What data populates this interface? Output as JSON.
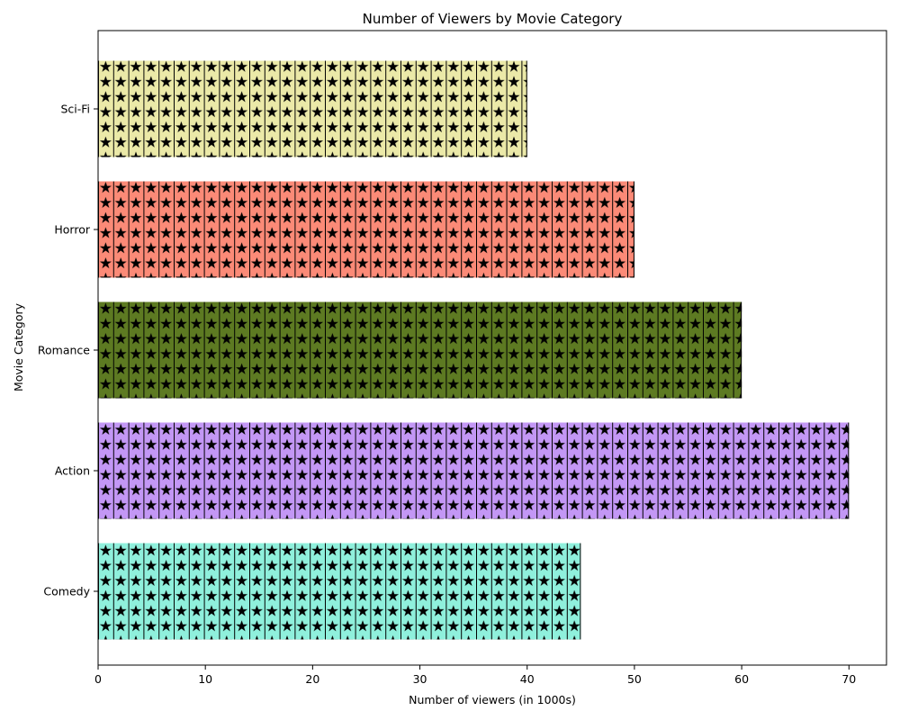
{
  "chart_data": {
    "type": "bar",
    "orientation": "horizontal",
    "title": "Number of Viewers by Movie Category",
    "xlabel": "Number of viewers (in 1000s)",
    "ylabel": "Movie Category",
    "categories": [
      "Comedy",
      "Action",
      "Romance",
      "Horror",
      "Sci-Fi"
    ],
    "values": [
      45,
      70,
      60,
      50,
      40
    ],
    "colors": [
      "#8ff0dc",
      "#c397f5",
      "#5d7a22",
      "#fb8a77",
      "#ebe9a8"
    ],
    "hatch": "star",
    "xlim": [
      0,
      73.5
    ],
    "xticks": [
      0,
      10,
      20,
      30,
      40,
      50,
      60,
      70
    ],
    "grid": false,
    "legend": "none"
  }
}
